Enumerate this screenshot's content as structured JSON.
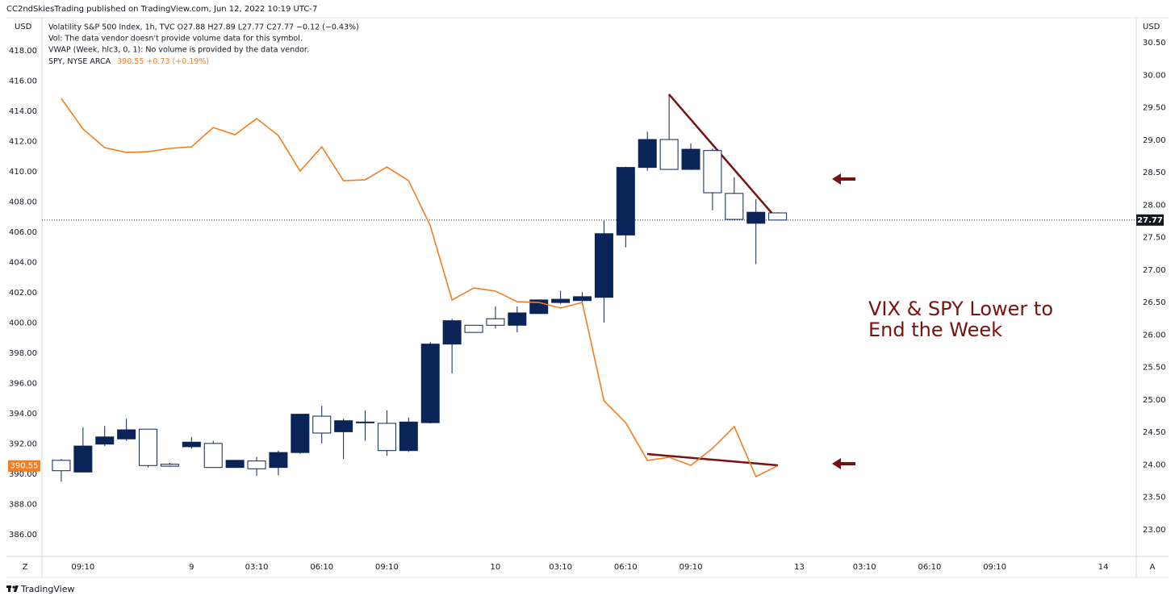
{
  "header": "CC2ndSkiesTrading published on TradingView.com, Jun 12, 2022 10:19 UTC-7",
  "footer": "TradingView",
  "chart_data": {
    "type": "candlestick",
    "legend": [
      "Volatility S&P 500 Index, 1h, TVC  O27.88  H27.89  L27.77  C27.77  −0.12 (−0.43%)",
      "Vol: The data vendor doesn't provide volume data for this symbol.",
      "VWAP (Week, hlc3, 0, 1): No volume is provided by the data vendor."
    ],
    "spy_legend": {
      "name": "SPY, NYSE ARCA",
      "quote": "390.55  +0.73 (+0.19%)"
    },
    "annotation": [
      "VIX & SPY Lower to",
      "End the Week"
    ],
    "y_unit": "USD",
    "y2_unit": "USD",
    "x": [
      0,
      1,
      2,
      3,
      4,
      5,
      6,
      7,
      8,
      9,
      10,
      11,
      12,
      13,
      14,
      15,
      16,
      17,
      18,
      19,
      20,
      21,
      22,
      23,
      24,
      25,
      26,
      27,
      28,
      29,
      30,
      31,
      32,
      33
    ],
    "xlim": [
      -0.89,
      49.52
    ],
    "xticks": [
      {
        "value": 1,
        "label": "09:10"
      },
      {
        "value": 6,
        "label": "9"
      },
      {
        "value": 9,
        "label": "03:10"
      },
      {
        "value": 12,
        "label": "06:10"
      },
      {
        "value": 15,
        "label": "09:10"
      },
      {
        "value": 20,
        "label": "10"
      },
      {
        "value": 23,
        "label": "03:10"
      },
      {
        "value": 26,
        "label": "06:10"
      },
      {
        "value": 29,
        "label": "09:10"
      },
      {
        "value": 34,
        "label": "13"
      },
      {
        "value": 37,
        "label": "03:10"
      },
      {
        "value": 40,
        "label": "06:10"
      },
      {
        "value": 43,
        "label": "09:10"
      },
      {
        "value": 48,
        "label": "14"
      }
    ],
    "ylim": [
      384.56,
      420.19
    ],
    "yticks": [
      {
        "value": 386,
        "label": "386.00"
      },
      {
        "value": 388,
        "label": "388.00"
      },
      {
        "value": 390,
        "label": "390.00"
      },
      {
        "value": 392,
        "label": "392.00"
      },
      {
        "value": 394,
        "label": "394.00"
      },
      {
        "value": 396,
        "label": "396.00"
      },
      {
        "value": 398,
        "label": "398.00"
      },
      {
        "value": 400,
        "label": "400.00"
      },
      {
        "value": 402,
        "label": "402.00"
      },
      {
        "value": 404,
        "label": "404.00"
      },
      {
        "value": 406,
        "label": "406.00"
      },
      {
        "value": 408,
        "label": "408.00"
      },
      {
        "value": 410,
        "label": "410.00"
      },
      {
        "value": 412,
        "label": "412.00"
      },
      {
        "value": 414,
        "label": "414.00"
      },
      {
        "value": 416,
        "label": "416.00"
      },
      {
        "value": 418,
        "label": "418.00"
      }
    ],
    "y2lim": [
      22.59,
      30.885
    ],
    "y2ticks": [
      {
        "value": 23,
        "label": "23.00"
      },
      {
        "value": 23.5,
        "label": "23.50"
      },
      {
        "value": 24,
        "label": "24.00"
      },
      {
        "value": 24.5,
        "label": "24.50"
      },
      {
        "value": 25,
        "label": "25.00"
      },
      {
        "value": 25.5,
        "label": "25.50"
      },
      {
        "value": 26,
        "label": "26.00"
      },
      {
        "value": 26.5,
        "label": "26.50"
      },
      {
        "value": 27,
        "label": "27.00"
      },
      {
        "value": 27.5,
        "label": "27.50"
      },
      {
        "value": 28,
        "label": "28.00"
      },
      {
        "value": 28.5,
        "label": "28.50"
      },
      {
        "value": 29,
        "label": "29.00"
      },
      {
        "value": 29.5,
        "label": "29.50"
      },
      {
        "value": 30,
        "label": "30.00"
      },
      {
        "value": 30.5,
        "label": "30.50"
      }
    ],
    "last_y": {
      "value": 390.55,
      "label": "390.55"
    },
    "last_y2": {
      "value": 27.77,
      "label": "27.77"
    },
    "series": [
      {
        "type": "candlestick",
        "axis": "y2",
        "up_color": "#0b2458",
        "down_color": "#ffffff",
        "open": [
          24.07,
          23.89,
          24.32,
          24.4,
          24.55,
          24.01,
          24.28,
          24.33,
          23.96,
          24.06,
          23.96,
          24.19,
          24.75,
          24.51,
          24.66,
          24.64,
          24.22,
          24.65,
          25.86,
          26.15,
          26.25,
          26.15,
          26.33,
          26.5,
          26.53,
          26.58,
          27.54,
          28.58,
          29.01,
          28.55,
          28.84,
          28.18,
          27.72,
          27.88
        ],
        "high": [
          24.09,
          24.58,
          24.6,
          24.71,
          24.55,
          24.03,
          24.43,
          24.37,
          24.07,
          24.12,
          24.22,
          24.78,
          24.91,
          24.71,
          24.84,
          24.84,
          24.73,
          25.89,
          26.25,
          26.15,
          26.44,
          26.44,
          26.54,
          26.68,
          26.66,
          27.76,
          28.59,
          29.13,
          29.71,
          28.95,
          28.87,
          28.43,
          28.09,
          27.89
        ],
        "low": [
          23.74,
          23.89,
          24.29,
          24.37,
          23.96,
          23.97,
          24.25,
          23.96,
          23.96,
          23.83,
          23.84,
          24.17,
          24.33,
          24.09,
          24.37,
          24.14,
          24.2,
          24.64,
          25.41,
          26.04,
          26.1,
          26.04,
          26.33,
          26.48,
          26.46,
          26.19,
          27.35,
          28.53,
          28.55,
          28.54,
          27.92,
          27.77,
          27.09,
          27.77
        ],
        "close": [
          23.91,
          24.29,
          24.43,
          24.54,
          23.99,
          23.98,
          24.35,
          23.96,
          24.07,
          23.94,
          24.19,
          24.78,
          24.49,
          24.68,
          24.65,
          24.22,
          24.66,
          25.86,
          26.22,
          26.04,
          26.15,
          26.34,
          26.54,
          26.55,
          26.59,
          27.56,
          28.58,
          29.01,
          28.55,
          28.86,
          28.19,
          27.78,
          27.89,
          27.77
        ]
      },
      {
        "type": "line",
        "axis": "y",
        "color": "#f57c1f",
        "values": [
          414.85,
          412.83,
          411.6,
          411.28,
          411.33,
          411.55,
          411.65,
          412.93,
          412.45,
          413.52,
          412.4,
          410.05,
          411.65,
          409.41,
          409.47,
          410.32,
          409.41,
          406.43,
          401.52,
          402.32,
          402.11,
          401.41,
          401.36,
          400.99,
          401.36,
          394.85,
          393.41,
          390.91,
          391.12,
          390.59,
          391.71,
          393.15,
          389.84,
          390.55
        ]
      }
    ]
  }
}
